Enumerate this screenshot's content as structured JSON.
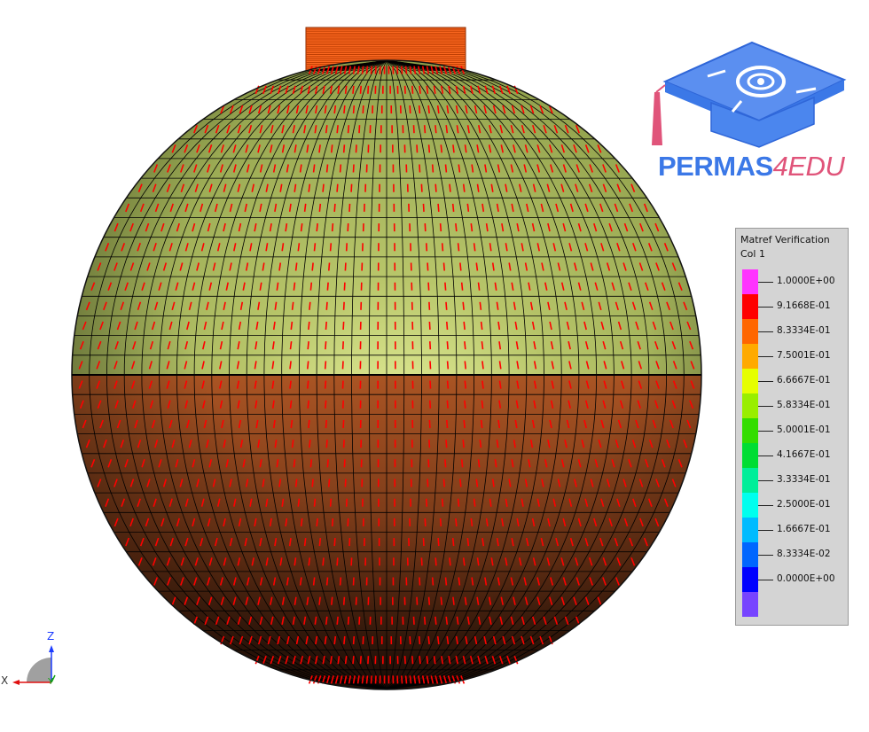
{
  "viewport": {
    "colors": {
      "upper_surface": "#a2b25a",
      "lower_surface": "#c6642a",
      "normals": "#ff0000",
      "mesh": "#000000",
      "neck": "#ff6a22"
    }
  },
  "logo": {
    "text_main": "PERMAS",
    "text_accent": "4EDU",
    "colors": {
      "primary": "#3b78e7",
      "accent": "#e0547a"
    },
    "icon": "graduation-cap-icon"
  },
  "legend": {
    "title": "Matref Verification",
    "subtitle": "Col  1",
    "colors": [
      "#ff33ff",
      "#ff0000",
      "#ff6600",
      "#ffaa00",
      "#e6ff00",
      "#99ee00",
      "#33dd00",
      "#00dd33",
      "#00ee99",
      "#00ffee",
      "#00bbff",
      "#0066ff",
      "#0000ff",
      "#7744ff"
    ],
    "labels": [
      "1.0000E+00",
      "9.1668E-01",
      "8.3334E-01",
      "7.5001E-01",
      "6.6667E-01",
      "5.8334E-01",
      "5.0001E-01",
      "4.1667E-01",
      "3.3334E-01",
      "2.5000E-01",
      "1.6667E-01",
      "8.3334E-02",
      "0.0000E+00"
    ]
  },
  "triad": {
    "x_label": "X",
    "z_label": "Z",
    "y_label": "Y"
  }
}
